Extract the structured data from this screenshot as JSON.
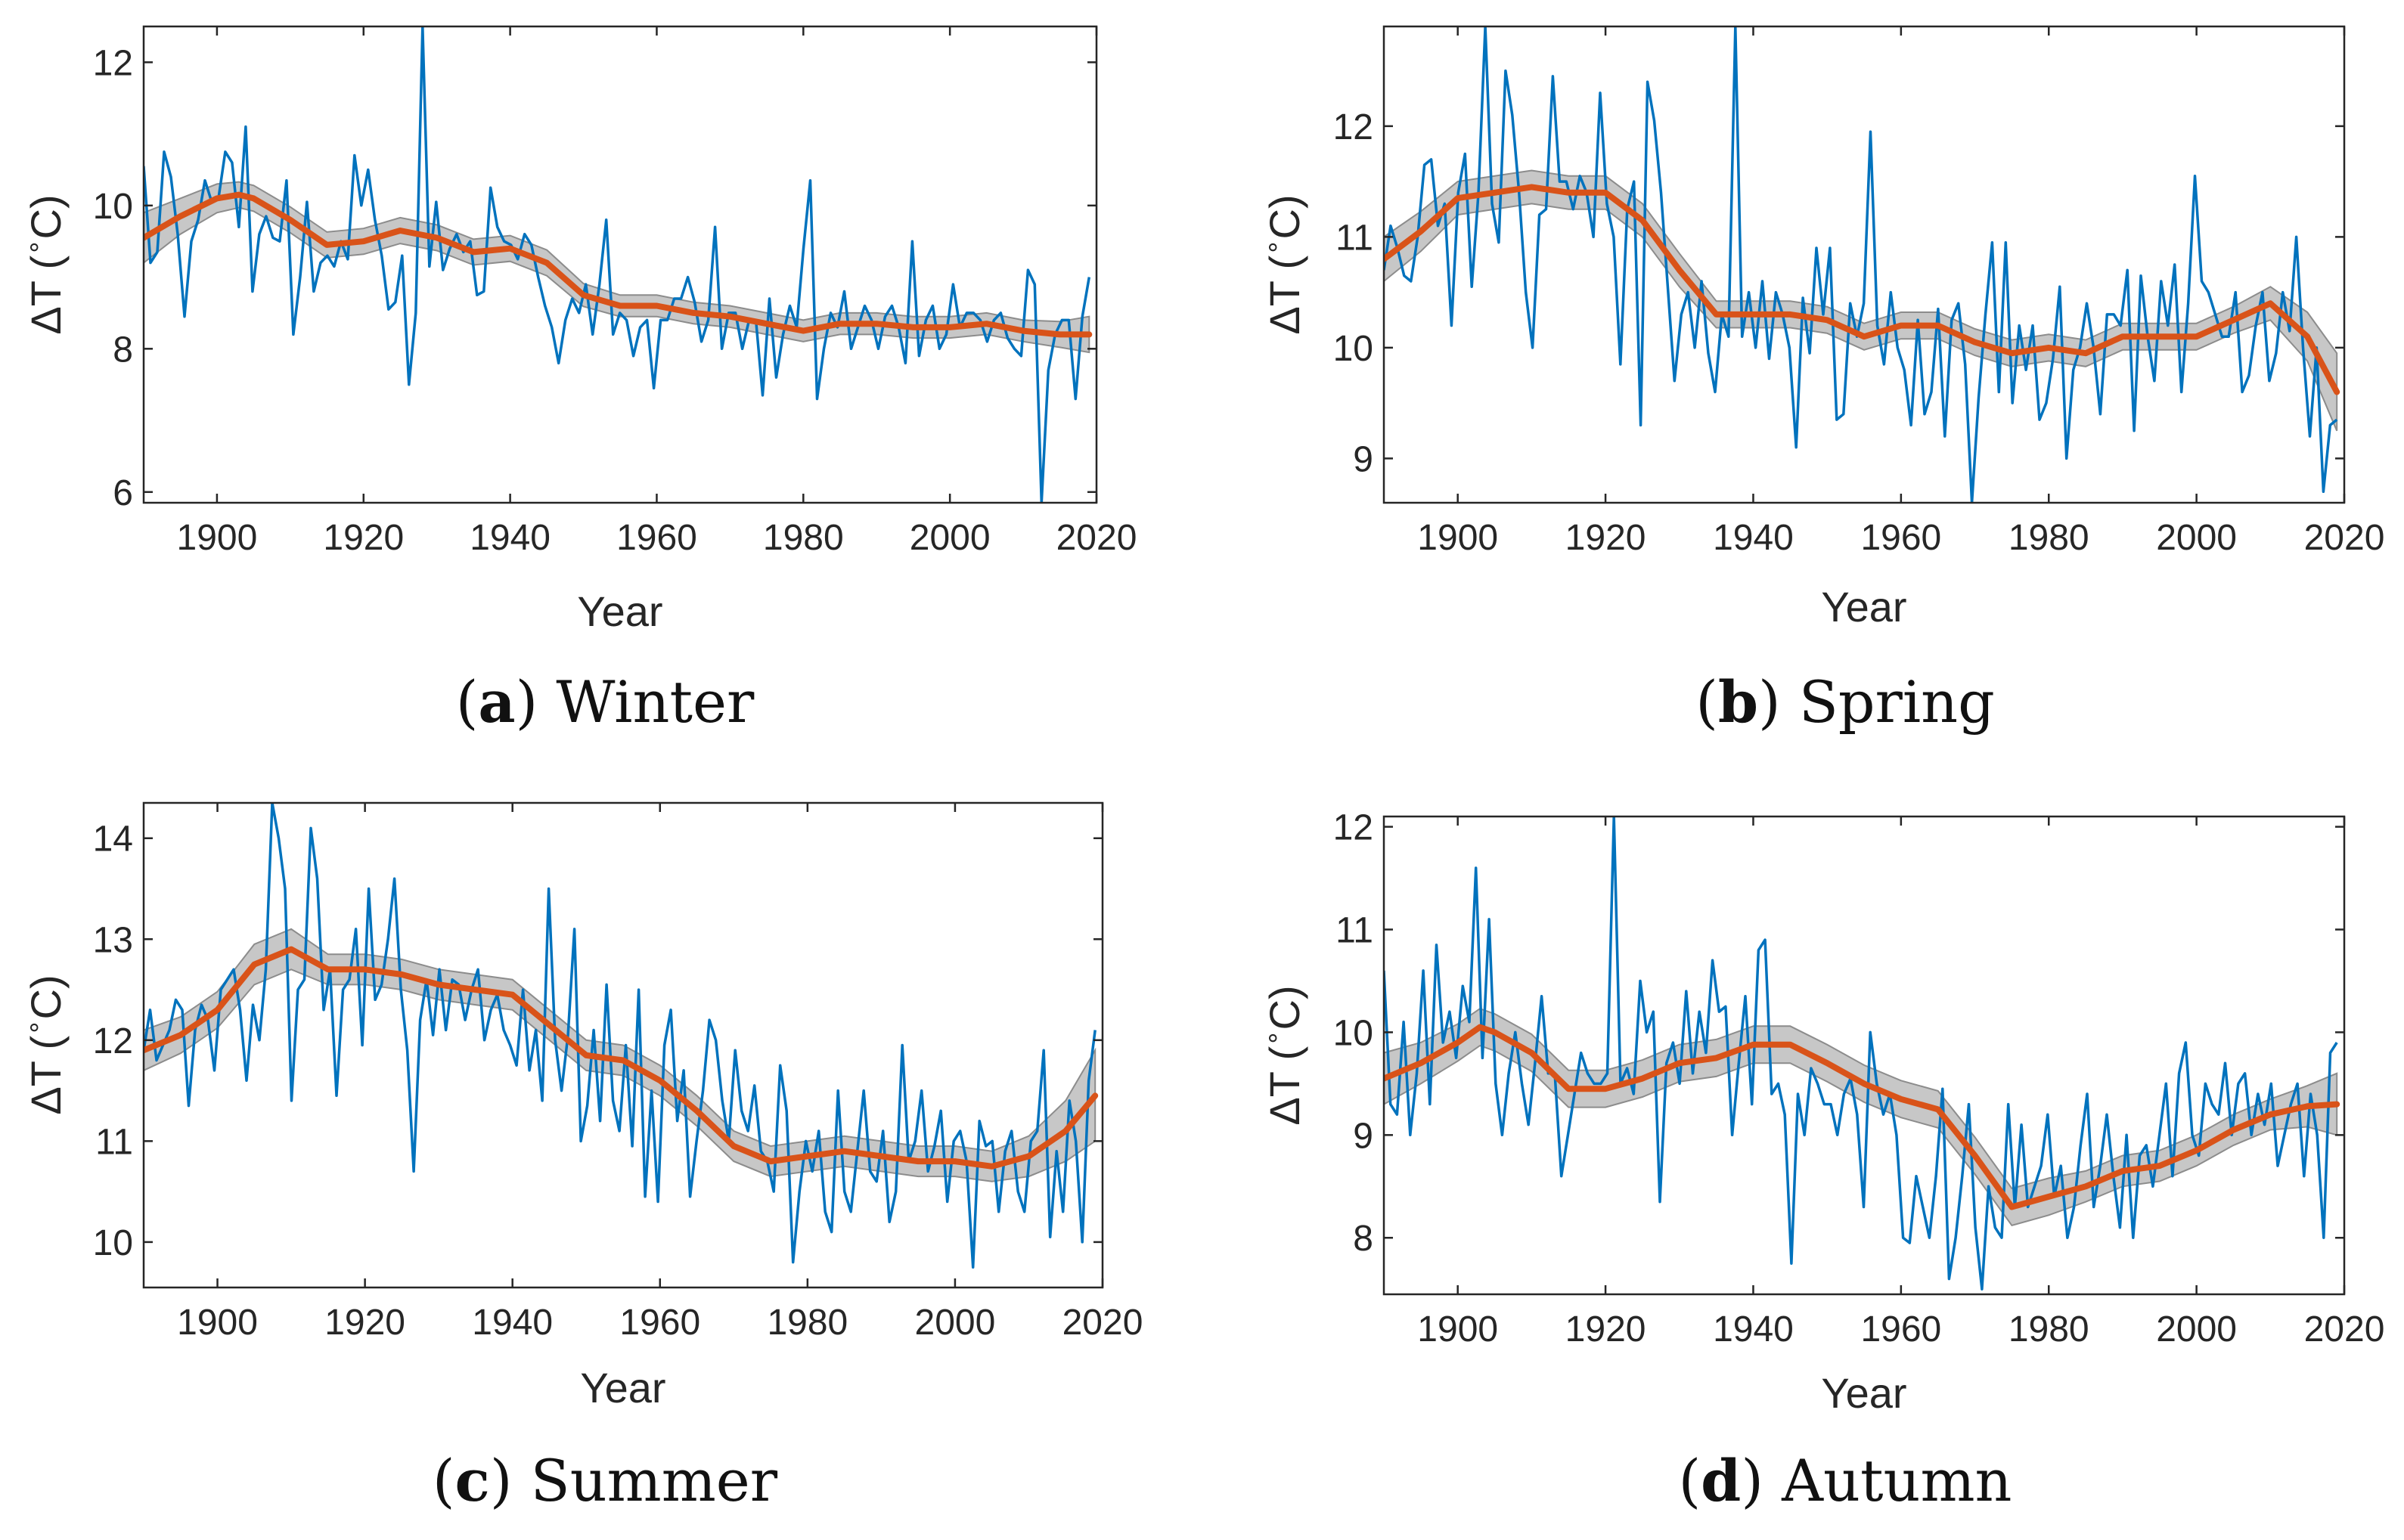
{
  "figure": {
    "colors": {
      "raw": "#0072BD",
      "smooth": "#D95319",
      "band": "#bdbdbd",
      "band_edge": "#8c8c8c",
      "axis": "#262626"
    }
  },
  "chart_data": [
    {
      "type": "line",
      "panel_letter": "a",
      "caption": "Winter",
      "xlabel": "Year",
      "ylabel_delta": "ΔT",
      "ylabel_degree": "∘",
      "ylabel_unit": "C",
      "xlim": [
        1890,
        2020
      ],
      "ylim": [
        5.85,
        12.5
      ],
      "xticks": [
        1900,
        1920,
        1940,
        1960,
        1980,
        2000,
        2020
      ],
      "yticks": [
        6,
        8,
        10,
        12
      ],
      "smooth": {
        "x": [
          1890,
          1895,
          1900,
          1903,
          1905,
          1910,
          1915,
          1920,
          1925,
          1930,
          1935,
          1940,
          1945,
          1950,
          1955,
          1960,
          1965,
          1970,
          1975,
          1980,
          1985,
          1990,
          1995,
          2000,
          2005,
          2010,
          2015,
          2019
        ],
        "y": [
          9.55,
          9.85,
          10.1,
          10.15,
          10.1,
          9.8,
          9.45,
          9.5,
          9.65,
          9.55,
          9.35,
          9.4,
          9.2,
          8.75,
          8.6,
          8.6,
          8.5,
          8.45,
          8.35,
          8.25,
          8.35,
          8.35,
          8.3,
          8.3,
          8.35,
          8.25,
          8.2,
          8.2
        ],
        "band": [
          0.35,
          0.25,
          0.2,
          0.18,
          0.18,
          0.18,
          0.18,
          0.18,
          0.18,
          0.18,
          0.18,
          0.18,
          0.18,
          0.16,
          0.15,
          0.15,
          0.15,
          0.15,
          0.15,
          0.15,
          0.15,
          0.15,
          0.15,
          0.15,
          0.15,
          0.15,
          0.18,
          0.25
        ]
      },
      "raw_y": [
        10.55,
        9.2,
        9.35,
        10.75,
        10.4,
        9.6,
        8.45,
        9.5,
        9.8,
        10.35,
        10.05,
        10.1,
        10.75,
        10.6,
        9.7,
        11.1,
        8.8,
        9.6,
        9.85,
        9.55,
        9.5,
        10.35,
        8.2,
        9.0,
        10.05,
        8.8,
        9.2,
        9.3,
        9.15,
        9.5,
        9.25,
        10.7,
        10.0,
        10.5,
        9.8,
        9.3,
        8.55,
        8.65,
        9.3,
        7.5,
        8.5,
        12.5,
        9.15,
        10.05,
        9.1,
        9.4,
        9.6,
        9.35,
        9.5,
        8.75,
        8.8,
        10.25,
        9.7,
        9.5,
        9.45,
        9.25,
        9.6,
        9.45,
        9.0,
        8.6,
        8.3,
        7.8,
        8.4,
        8.7,
        8.5,
        8.9,
        8.2,
        8.9,
        9.8,
        8.2,
        8.5,
        8.4,
        7.9,
        8.3,
        8.4,
        7.45,
        8.4,
        8.4,
        8.7,
        8.7,
        9.0,
        8.65,
        8.1,
        8.4,
        9.7,
        8.0,
        8.5,
        8.5,
        8.0,
        8.4,
        8.4,
        7.35,
        8.7,
        7.6,
        8.2,
        8.6,
        8.3,
        9.4,
        10.35,
        7.3,
        8.0,
        8.5,
        8.3,
        8.8,
        8.0,
        8.3,
        8.6,
        8.4,
        8.0,
        8.45,
        8.6,
        8.3,
        7.8,
        9.5,
        7.9,
        8.4,
        8.6,
        8.0,
        8.2,
        8.9,
        8.3,
        8.5,
        8.5,
        8.4,
        8.1,
        8.4,
        8.5,
        8.15,
        8.0,
        7.9,
        9.1,
        8.9,
        5.85,
        7.7,
        8.2,
        8.4,
        8.4,
        7.3,
        8.45,
        9.0
      ]
    },
    {
      "type": "line",
      "panel_letter": "b",
      "caption": "Spring",
      "xlabel": "Year",
      "ylabel_delta": "ΔT",
      "ylabel_degree": "∘",
      "ylabel_unit": "C",
      "xlim": [
        1890,
        2020
      ],
      "ylim": [
        8.6,
        12.9
      ],
      "xticks": [
        1900,
        1920,
        1940,
        1960,
        1980,
        2000,
        2020
      ],
      "yticks": [
        9,
        10,
        11,
        12
      ],
      "smooth": {
        "x": [
          1890,
          1895,
          1900,
          1905,
          1910,
          1915,
          1920,
          1925,
          1930,
          1935,
          1940,
          1945,
          1950,
          1955,
          1960,
          1965,
          1970,
          1975,
          1980,
          1985,
          1990,
          1995,
          2000,
          2005,
          2010,
          2015,
          2019
        ],
        "y": [
          10.8,
          11.05,
          11.35,
          11.4,
          11.45,
          11.4,
          11.4,
          11.15,
          10.7,
          10.3,
          10.3,
          10.3,
          10.25,
          10.1,
          10.2,
          10.2,
          10.05,
          9.95,
          10.0,
          9.95,
          10.1,
          10.1,
          10.1,
          10.25,
          10.4,
          10.1,
          9.6
        ],
        "band": [
          0.2,
          0.18,
          0.15,
          0.15,
          0.15,
          0.15,
          0.15,
          0.15,
          0.15,
          0.12,
          0.12,
          0.12,
          0.12,
          0.12,
          0.12,
          0.12,
          0.12,
          0.12,
          0.12,
          0.12,
          0.12,
          0.12,
          0.12,
          0.12,
          0.15,
          0.22,
          0.35
        ]
      },
      "raw_y": [
        10.7,
        11.1,
        10.9,
        10.65,
        10.6,
        11.0,
        11.65,
        11.7,
        11.1,
        11.3,
        10.2,
        11.4,
        11.75,
        10.55,
        11.4,
        12.9,
        11.3,
        10.95,
        12.5,
        12.1,
        11.4,
        10.5,
        10.0,
        11.2,
        11.25,
        12.45,
        11.5,
        11.5,
        11.25,
        11.55,
        11.4,
        11.0,
        12.3,
        11.3,
        11.0,
        9.85,
        11.25,
        11.5,
        9.3,
        12.4,
        12.05,
        11.4,
        10.55,
        9.7,
        10.3,
        10.5,
        10.0,
        10.6,
        9.95,
        9.6,
        10.3,
        10.1,
        12.9,
        10.1,
        10.5,
        10.0,
        10.6,
        9.9,
        10.5,
        10.3,
        10.0,
        9.1,
        10.45,
        9.95,
        10.9,
        10.3,
        10.9,
        9.35,
        9.4,
        10.4,
        10.1,
        10.4,
        11.95,
        10.2,
        9.85,
        10.5,
        10.0,
        9.8,
        9.3,
        10.25,
        9.4,
        9.6,
        10.35,
        9.2,
        10.25,
        10.4,
        9.85,
        8.6,
        9.55,
        10.3,
        10.95,
        9.6,
        10.95,
        9.5,
        10.2,
        9.8,
        10.2,
        9.35,
        9.5,
        9.9,
        10.55,
        9.0,
        9.8,
        10.0,
        10.4,
        10.0,
        9.4,
        10.3,
        10.3,
        10.2,
        10.7,
        9.25,
        10.65,
        10.1,
        9.7,
        10.6,
        10.2,
        10.75,
        9.6,
        10.4,
        11.55,
        10.6,
        10.5,
        10.3,
        10.1,
        10.1,
        10.5,
        9.6,
        9.75,
        10.2,
        10.5,
        9.7,
        9.95,
        10.5,
        10.15,
        11.0,
        10.0,
        9.2,
        10.0,
        8.7,
        9.3,
        9.35
      ]
    },
    {
      "type": "line",
      "panel_letter": "c",
      "caption": "Summer",
      "xlabel": "Year",
      "ylabel_delta": "ΔT",
      "ylabel_degree": "∘",
      "ylabel_unit": "C",
      "xlim": [
        1890,
        2020
      ],
      "ylim": [
        9.55,
        14.35
      ],
      "xticks": [
        1900,
        1920,
        1940,
        1960,
        1980,
        2000,
        2020
      ],
      "yticks": [
        10,
        11,
        12,
        13,
        14
      ],
      "smooth": {
        "x": [
          1890,
          1895,
          1900,
          1905,
          1910,
          1915,
          1920,
          1925,
          1930,
          1935,
          1940,
          1945,
          1950,
          1955,
          1960,
          1965,
          1970,
          1975,
          1980,
          1985,
          1990,
          1995,
          2000,
          2005,
          2010,
          2015,
          2019
        ],
        "y": [
          11.9,
          12.05,
          12.3,
          12.75,
          12.9,
          12.7,
          12.7,
          12.65,
          12.55,
          12.5,
          12.45,
          12.15,
          11.85,
          11.8,
          11.6,
          11.3,
          10.95,
          10.8,
          10.85,
          10.9,
          10.85,
          10.8,
          10.8,
          10.75,
          10.85,
          11.1,
          11.45
        ],
        "band": [
          0.2,
          0.18,
          0.18,
          0.2,
          0.2,
          0.15,
          0.15,
          0.15,
          0.15,
          0.15,
          0.15,
          0.15,
          0.15,
          0.15,
          0.15,
          0.15,
          0.15,
          0.15,
          0.15,
          0.15,
          0.15,
          0.15,
          0.15,
          0.15,
          0.2,
          0.3,
          0.45
        ]
      },
      "raw_y": [
        11.9,
        12.3,
        11.8,
        11.95,
        12.1,
        12.4,
        12.3,
        11.35,
        12.1,
        12.35,
        12.2,
        11.7,
        12.5,
        12.6,
        12.7,
        12.3,
        11.6,
        12.35,
        12.0,
        12.7,
        14.35,
        14.0,
        13.5,
        11.4,
        12.5,
        12.6,
        14.1,
        13.6,
        12.3,
        12.7,
        11.45,
        12.5,
        12.6,
        13.1,
        11.95,
        13.5,
        12.4,
        12.55,
        13.0,
        13.6,
        12.5,
        11.9,
        10.7,
        12.2,
        12.6,
        12.05,
        12.7,
        12.1,
        12.6,
        12.55,
        12.2,
        12.5,
        12.7,
        12.0,
        12.3,
        12.45,
        12.1,
        11.95,
        11.75,
        12.5,
        11.7,
        12.1,
        11.4,
        13.5,
        12.0,
        11.5,
        12.05,
        13.1,
        11.0,
        11.35,
        12.1,
        11.2,
        12.55,
        11.4,
        11.1,
        11.95,
        10.95,
        12.5,
        10.45,
        11.5,
        10.4,
        11.95,
        12.3,
        11.2,
        11.7,
        10.45,
        11.0,
        11.5,
        12.2,
        12.0,
        11.4,
        11.0,
        11.9,
        11.3,
        11.1,
        11.55,
        10.9,
        10.8,
        10.5,
        11.75,
        11.3,
        9.8,
        10.5,
        11.0,
        10.7,
        11.1,
        10.3,
        10.1,
        11.5,
        10.5,
        10.3,
        10.9,
        11.5,
        10.7,
        10.6,
        11.1,
        10.2,
        10.5,
        11.95,
        10.8,
        11.0,
        11.5,
        10.7,
        10.95,
        11.3,
        10.4,
        11.0,
        11.1,
        10.8,
        9.75,
        11.2,
        10.95,
        11.0,
        10.3,
        10.9,
        11.1,
        10.5,
        10.3,
        11.0,
        11.1,
        11.9,
        10.05,
        10.9,
        10.3,
        11.4,
        11.0,
        10.0,
        11.6,
        12.1
      ]
    },
    {
      "type": "line",
      "panel_letter": "d",
      "caption": "Autumn",
      "xlabel": "Year",
      "ylabel_delta": "ΔT",
      "ylabel_degree": "∘",
      "ylabel_unit": "C",
      "xlim": [
        1890,
        2020
      ],
      "ylim": [
        7.45,
        12.1
      ],
      "xticks": [
        1900,
        1920,
        1940,
        1960,
        1980,
        2000,
        2020
      ],
      "yticks": [
        8,
        9,
        10,
        11,
        12
      ],
      "smooth": {
        "x": [
          1890,
          1895,
          1900,
          1903,
          1905,
          1910,
          1915,
          1920,
          1925,
          1930,
          1935,
          1940,
          1945,
          1950,
          1955,
          1960,
          1965,
          1970,
          1975,
          1980,
          1985,
          1990,
          1995,
          2000,
          2005,
          2010,
          2015,
          2019
        ],
        "y": [
          9.55,
          9.7,
          9.9,
          10.05,
          10.0,
          9.8,
          9.45,
          9.45,
          9.55,
          9.7,
          9.75,
          9.88,
          9.88,
          9.7,
          9.5,
          9.35,
          9.25,
          8.8,
          8.3,
          8.4,
          8.5,
          8.65,
          8.7,
          8.85,
          9.05,
          9.2,
          9.28,
          9.3
        ],
        "band": [
          0.25,
          0.2,
          0.18,
          0.18,
          0.18,
          0.18,
          0.18,
          0.18,
          0.18,
          0.18,
          0.18,
          0.18,
          0.18,
          0.18,
          0.18,
          0.18,
          0.18,
          0.18,
          0.18,
          0.18,
          0.15,
          0.15,
          0.15,
          0.15,
          0.15,
          0.15,
          0.2,
          0.3
        ]
      },
      "raw_y": [
        10.6,
        9.3,
        9.2,
        10.1,
        9.0,
        9.6,
        10.6,
        9.3,
        10.85,
        9.9,
        10.2,
        9.75,
        10.45,
        10.1,
        11.6,
        9.75,
        11.1,
        9.5,
        9.0,
        9.6,
        10.0,
        9.5,
        9.1,
        9.7,
        10.35,
        9.6,
        9.6,
        8.6,
        9.0,
        9.4,
        9.8,
        9.6,
        9.5,
        9.5,
        9.6,
        12.1,
        9.5,
        9.65,
        9.4,
        10.5,
        10.0,
        10.2,
        8.35,
        9.7,
        9.9,
        9.5,
        10.4,
        9.6,
        10.2,
        9.8,
        10.7,
        10.2,
        10.25,
        9.0,
        9.7,
        10.35,
        9.3,
        10.8,
        10.9,
        9.4,
        9.5,
        9.2,
        7.75,
        9.4,
        9.0,
        9.65,
        9.5,
        9.3,
        9.3,
        9.0,
        9.4,
        9.55,
        9.2,
        8.3,
        10.0,
        9.5,
        9.2,
        9.4,
        9.0,
        8.0,
        7.95,
        8.6,
        8.3,
        8.0,
        8.6,
        9.45,
        7.6,
        8.0,
        8.6,
        9.3,
        8.1,
        7.5,
        8.5,
        8.1,
        8.0,
        9.3,
        8.3,
        9.1,
        8.3,
        8.5,
        8.7,
        9.2,
        8.4,
        8.7,
        8.0,
        8.3,
        8.9,
        9.4,
        8.3,
        8.7,
        9.2,
        8.6,
        8.1,
        9.0,
        8.0,
        8.8,
        8.9,
        8.5,
        9.0,
        9.5,
        8.6,
        9.6,
        9.9,
        9.0,
        8.8,
        9.5,
        9.3,
        9.2,
        9.7,
        9.0,
        9.5,
        9.6,
        9.0,
        9.4,
        9.1,
        9.5,
        8.7,
        9.0,
        9.3,
        9.5,
        8.6,
        9.4,
        9.0,
        8.0,
        9.8,
        9.9
      ]
    }
  ]
}
